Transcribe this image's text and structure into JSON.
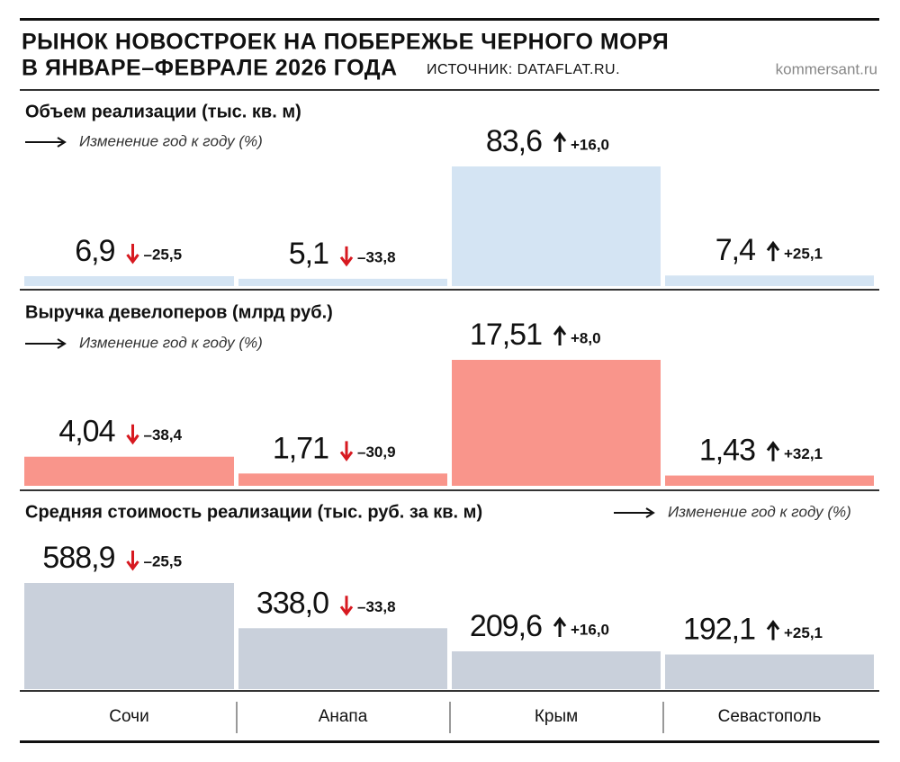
{
  "title_lines": [
    "РЫНОК НОВОСТРОЕК НА ПОБЕРЕЖЬЕ ЧЕРНОГО МОРЯ",
    "В ЯНВАРЕ–ФЕВРАЛЕ 2026 ГОДА"
  ],
  "source": "ИСТОЧНИК: DATAFLAT.RU.",
  "site": "kommersant.ru",
  "categories": [
    "Сочи",
    "Анапа",
    "Крым",
    "Севастополь"
  ],
  "chart_data": [
    {
      "type": "bar",
      "title": "Объем реализации (тыс. кв. м)",
      "change_name": "Изменение год к году (%)",
      "color": "#d4e4f3",
      "values": [
        6.9,
        5.1,
        83.6,
        7.4
      ],
      "value_labels": [
        "6,9",
        "5,1",
        "83,6",
        "7,4"
      ],
      "change": [
        -25.5,
        -33.8,
        16.0,
        25.1
      ],
      "change_labels": [
        "–25,5",
        "–33,8",
        "+16,0",
        "+25,1"
      ]
    },
    {
      "type": "bar",
      "title": "Выручка девелоперов (млрд руб.)",
      "change_name": "Изменение год к году (%)",
      "color": "#f9958b",
      "values": [
        4.04,
        1.71,
        17.51,
        1.43
      ],
      "value_labels": [
        "4,04",
        "1,71",
        "17,51",
        "1,43"
      ],
      "change": [
        -38.4,
        -30.9,
        8.0,
        32.1
      ],
      "change_labels": [
        "–38,4",
        "–30,9",
        "+8,0",
        "+32,1"
      ]
    },
    {
      "type": "bar",
      "title": "Средняя стоимость реализации (тыс. руб. за кв. м)",
      "change_name": "Изменение год к году (%)",
      "color": "#c9d0db",
      "values": [
        588.9,
        338.0,
        209.6,
        192.1
      ],
      "value_labels": [
        "588,9",
        "338,0",
        "209,6",
        "192,1"
      ],
      "change": [
        -25.5,
        -33.8,
        16.0,
        25.1
      ],
      "change_labels": [
        "–25,5",
        "–33,8",
        "+16,0",
        "+25,1"
      ]
    }
  ]
}
